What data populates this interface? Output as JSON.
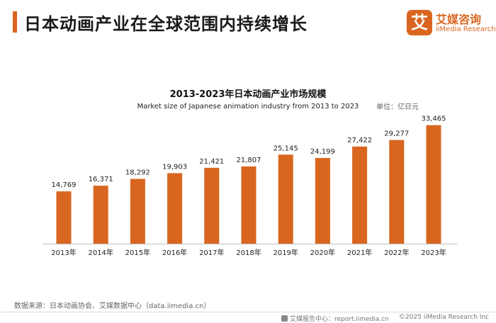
{
  "header": {
    "title": "日本动画产业在全球范围内持续增长"
  },
  "logo": {
    "mark": "艾",
    "cn": "艾媒咨询",
    "en": "iiMedia Research"
  },
  "chart_data": {
    "type": "bar",
    "title": "2013-2023年日本动画产业市场规模",
    "subtitle": "Market size of Japanese animation industry from 2013 to 2023",
    "unit_label": "单位：亿日元",
    "categories": [
      "2013年",
      "2014年",
      "2015年",
      "2016年",
      "2017年",
      "2018年",
      "2019年",
      "2020年",
      "2021年",
      "2022年",
      "2023年"
    ],
    "values": [
      14769,
      16371,
      18292,
      19903,
      21421,
      21807,
      25145,
      24199,
      27422,
      29277,
      33465
    ],
    "value_labels": [
      "14,769",
      "16,371",
      "18,292",
      "19,903",
      "21,421",
      "21,807",
      "25,145",
      "24,199",
      "27,422",
      "29,277",
      "33,465"
    ],
    "xlabel": "",
    "ylabel": "",
    "ylim": [
      0,
      38000
    ],
    "bar_color": "#d9661f",
    "grid": false,
    "legend": "none"
  },
  "source": "数据来源：日本动画协会、艾媒数据中心（data.iimedia.cn）",
  "footer": {
    "report": "艾媒报告中心：report.iimedia.cn",
    "copyright": "©2025  iiMedia Research  Inc"
  },
  "colors": {
    "accent": "#d9661f"
  }
}
